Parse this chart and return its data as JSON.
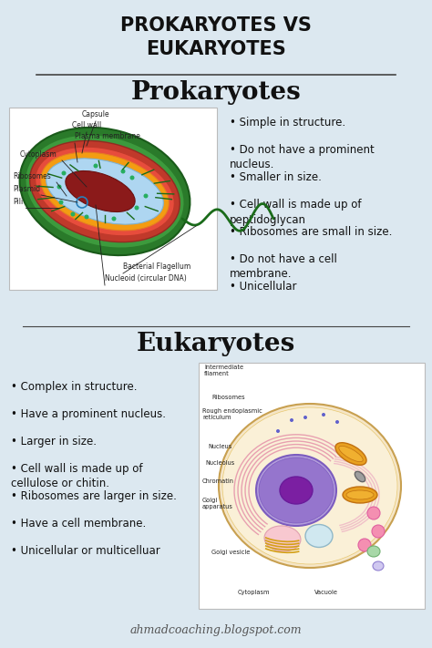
{
  "background_color": "#dce8f0",
  "title": "PROKARYOTES VS\nEUKARYOTES",
  "title_fontsize": 15,
  "title_color": "#111111",
  "section1_title": "Prokaryotes",
  "section2_title": "Eukaryotes",
  "section_title_fontsize": 20,
  "prokaryote_bullets": [
    "Simple in structure.",
    "Do not have a prominent\nnucleus.",
    "Smaller in size.",
    "Cell wall is made up of\npeptidoglycan",
    "Ribosomes are small in size.",
    "Do not have a cell\nmembrane.",
    "Unicellular"
  ],
  "eukaryote_bullets": [
    "Complex in structure.",
    "Have a prominent nucleus.",
    "Larger in size.",
    "Cell wall is made up of\ncellulose or chitin.",
    "Ribosomes are larger in size.",
    "Have a cell membrane.",
    "Unicellular or multicelluar"
  ],
  "bullet_fontsize": 8.5,
  "bullet_color": "#111111",
  "divider_color": "#444444",
  "footer_text": "ahmadcoaching.blogspot.com",
  "footer_fontsize": 9,
  "footer_color": "#555555"
}
